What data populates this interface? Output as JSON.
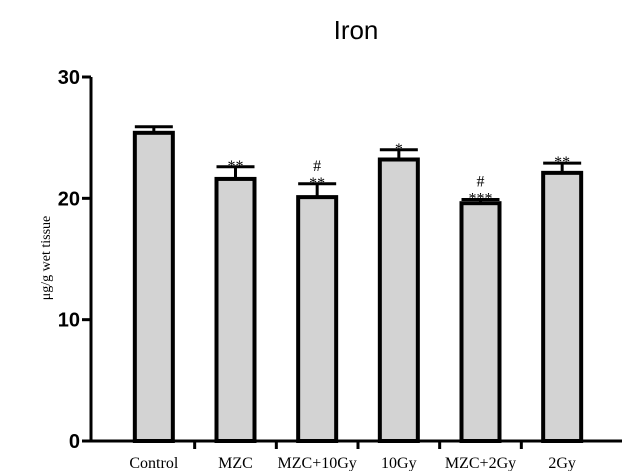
{
  "chart_data": {
    "type": "bar",
    "title": "Iron",
    "xlabel": "",
    "ylabel": "μg/g wet tissue",
    "categories": [
      "Control",
      "MZC",
      "MZC+10Gy",
      "10Gy",
      "MZC+2Gy",
      "2Gy"
    ],
    "values": [
      25.4,
      21.6,
      20.1,
      23.2,
      19.6,
      22.1
    ],
    "errors": [
      0.5,
      1.0,
      1.1,
      0.8,
      0.3,
      0.8
    ],
    "significance": [
      {
        "lines": []
      },
      {
        "lines": [
          "**"
        ]
      },
      {
        "lines": [
          "#",
          "**"
        ]
      },
      {
        "lines": [
          "*"
        ]
      },
      {
        "lines": [
          "#",
          "***"
        ]
      },
      {
        "lines": [
          "**"
        ]
      }
    ],
    "ylim": [
      0,
      30
    ],
    "yticks": [
      0,
      10,
      20,
      30
    ],
    "colors": {
      "bar_fill": "#d3d3d3",
      "bar_stroke": "#000000"
    },
    "grid": false,
    "legend": "none"
  }
}
